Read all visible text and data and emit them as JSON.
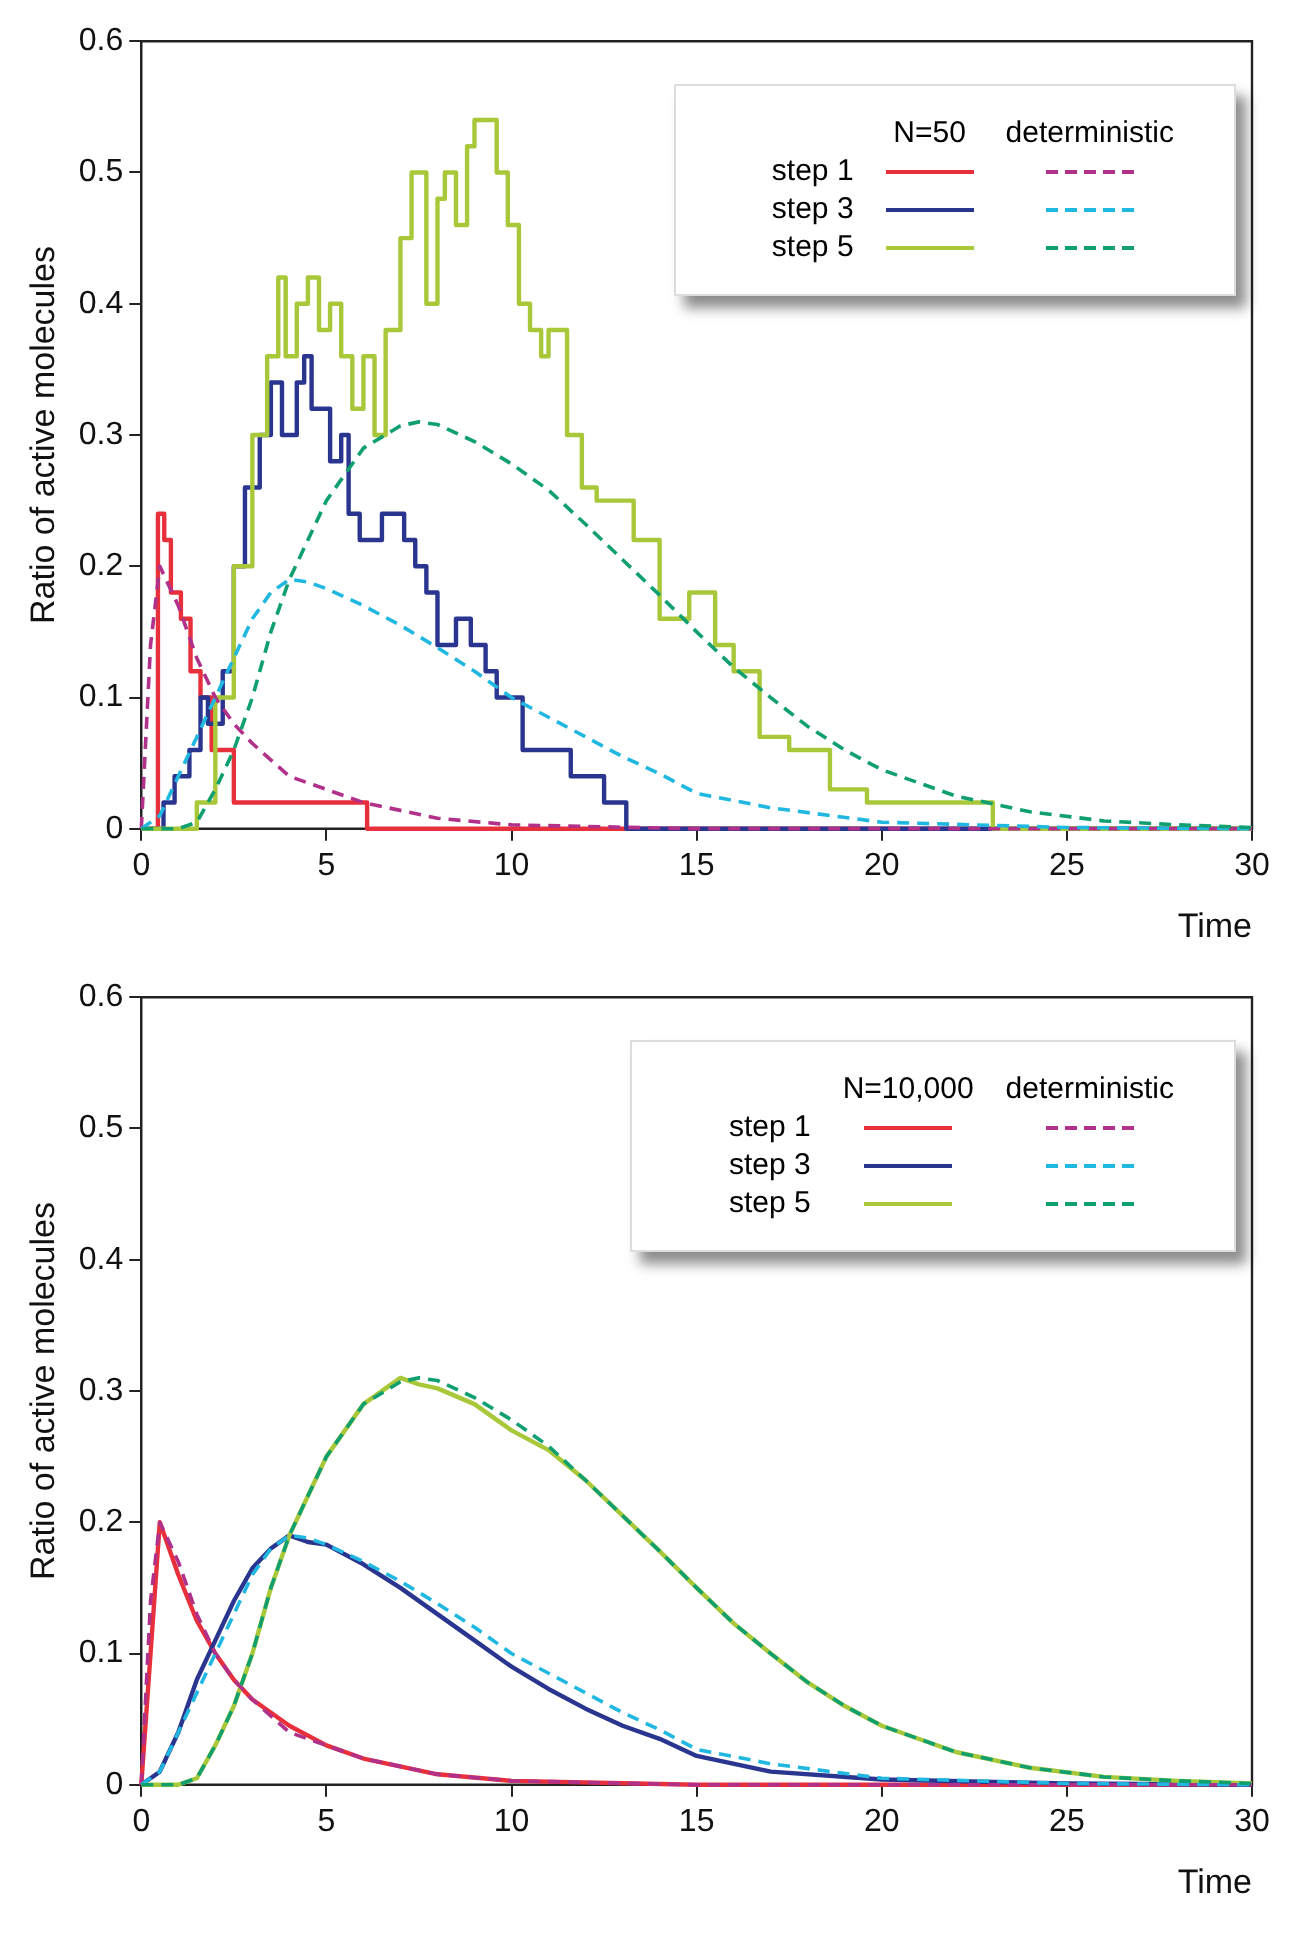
{
  "chart_data": [
    {
      "type": "line",
      "xlabel": "Time",
      "ylabel": "Ratio of active molecules",
      "xlim": [
        0,
        30
      ],
      "ylim": [
        0,
        0.6
      ],
      "xticks": [
        0,
        5,
        10,
        15,
        20,
        25,
        30
      ],
      "yticks": [
        0,
        0.1,
        0.2,
        0.3,
        0.4,
        0.5,
        0.6
      ],
      "grid": false,
      "legend": "top right",
      "legend_title": "N=50",
      "annotations": [
        "deterministic"
      ],
      "series": [
        {
          "type": "step",
          "name": "step 1",
          "color": "#e8303c",
          "line_style": "solid",
          "x": [
            0,
            0.45,
            0.62,
            0.8,
            1.07,
            1.33,
            1.6,
            1.9,
            2.5,
            6.1,
            30
          ],
          "values": [
            0,
            0.24,
            0.22,
            0.18,
            0.16,
            0.12,
            0.1,
            0.06,
            0.02,
            0,
            0
          ]
        },
        {
          "type": "step",
          "name": "step 3",
          "color": "#2a3590",
          "line_style": "solid",
          "x": [
            0,
            0.6,
            0.9,
            1.3,
            1.6,
            1.8,
            2.2,
            2.5,
            2.8,
            3.2,
            3.5,
            3.8,
            4.2,
            4.4,
            4.6,
            5.1,
            5.4,
            5.6,
            5.9,
            6.5,
            7.1,
            7.4,
            7.7,
            8.0,
            8.5,
            8.9,
            9.3,
            9.6,
            10.3,
            11.6,
            12.5,
            13.1,
            30
          ],
          "values": [
            0,
            0.02,
            0.04,
            0.06,
            0.1,
            0.08,
            0.12,
            0.2,
            0.26,
            0.3,
            0.34,
            0.3,
            0.34,
            0.36,
            0.32,
            0.28,
            0.3,
            0.24,
            0.22,
            0.24,
            0.22,
            0.2,
            0.18,
            0.14,
            0.16,
            0.14,
            0.12,
            0.1,
            0.06,
            0.04,
            0.02,
            0,
            0
          ]
        },
        {
          "type": "step",
          "name": "step 5",
          "color": "#a8c83a",
          "line_style": "solid",
          "x": [
            0,
            1.5,
            2.0,
            2.5,
            3.0,
            3.4,
            3.7,
            3.9,
            4.2,
            4.5,
            4.8,
            5.1,
            5.4,
            5.7,
            6.0,
            6.3,
            6.6,
            7.0,
            7.3,
            7.7,
            8.0,
            8.2,
            8.5,
            8.8,
            9.0,
            9.6,
            9.9,
            10.2,
            10.5,
            10.8,
            11.0,
            11.5,
            11.9,
            12.3,
            13.3,
            14.0,
            14.8,
            15.5,
            16.0,
            16.7,
            17.5,
            18.6,
            19.6,
            23.0,
            30
          ],
          "values": [
            0,
            0.02,
            0.1,
            0.2,
            0.3,
            0.36,
            0.42,
            0.36,
            0.4,
            0.42,
            0.38,
            0.4,
            0.36,
            0.32,
            0.36,
            0.3,
            0.38,
            0.45,
            0.5,
            0.4,
            0.48,
            0.5,
            0.46,
            0.52,
            0.54,
            0.5,
            0.46,
            0.4,
            0.38,
            0.36,
            0.38,
            0.3,
            0.26,
            0.25,
            0.22,
            0.16,
            0.18,
            0.14,
            0.12,
            0.07,
            0.06,
            0.03,
            0.02,
            0,
            0
          ]
        },
        {
          "type": "line",
          "color": "#b0308a",
          "line_style": "dashed",
          "x": [
            0,
            0.25,
            0.5,
            1,
            1.5,
            2,
            2.5,
            3,
            4,
            5,
            6,
            8,
            10,
            15,
            20,
            30
          ],
          "values": [
            0,
            0.14,
            0.2,
            0.17,
            0.13,
            0.1,
            0.08,
            0.065,
            0.04,
            0.03,
            0.02,
            0.008,
            0.003,
            0,
            0,
            0
          ]
        },
        {
          "type": "line",
          "color": "#20b8e0",
          "line_style": "dashed",
          "x": [
            0,
            0.5,
            1,
            1.5,
            2,
            2.5,
            3,
            3.5,
            4,
            4.5,
            5,
            6,
            7,
            8,
            9,
            10,
            11,
            12,
            13,
            14,
            15,
            17,
            20,
            25,
            30
          ],
          "values": [
            0,
            0.01,
            0.04,
            0.07,
            0.1,
            0.13,
            0.16,
            0.18,
            0.19,
            0.188,
            0.183,
            0.17,
            0.155,
            0.138,
            0.12,
            0.1,
            0.085,
            0.07,
            0.055,
            0.042,
            0.027,
            0.016,
            0.005,
            0.001,
            0
          ]
        },
        {
          "type": "line",
          "color": "#10a070",
          "line_style": "dashed",
          "x": [
            0,
            1,
            1.5,
            2,
            2.5,
            3,
            3.5,
            4,
            4.5,
            5,
            5.5,
            6,
            7,
            7.5,
            8,
            9,
            10,
            11,
            12,
            13,
            14,
            15,
            16,
            17,
            18,
            19,
            20,
            22,
            24,
            26,
            28,
            30
          ],
          "values": [
            0,
            0,
            0.005,
            0.03,
            0.06,
            0.1,
            0.15,
            0.19,
            0.22,
            0.25,
            0.27,
            0.29,
            0.307,
            0.31,
            0.308,
            0.295,
            0.278,
            0.258,
            0.232,
            0.205,
            0.178,
            0.15,
            0.123,
            0.1,
            0.078,
            0.06,
            0.045,
            0.025,
            0.013,
            0.006,
            0.003,
            0.001
          ]
        }
      ]
    },
    {
      "type": "line",
      "xlabel": "Time",
      "ylabel": "Ratio of active molecules",
      "xlim": [
        0,
        30
      ],
      "ylim": [
        0,
        0.6
      ],
      "xticks": [
        0,
        5,
        10,
        15,
        20,
        25,
        30
      ],
      "yticks": [
        0,
        0.1,
        0.2,
        0.3,
        0.4,
        0.5,
        0.6
      ],
      "grid": false,
      "legend": "top right",
      "legend_title": "N=10,000",
      "annotations": [
        "deterministic"
      ],
      "series": [
        {
          "type": "line",
          "name": "step 1",
          "color": "#e8303c",
          "line_style": "solid",
          "x": [
            0,
            0.5,
            1,
            1.5,
            2,
            2.5,
            3,
            4,
            5,
            6,
            8,
            10,
            15,
            30
          ],
          "values": [
            0,
            0.2,
            0.16,
            0.125,
            0.1,
            0.08,
            0.065,
            0.045,
            0.03,
            0.02,
            0.008,
            0.003,
            0,
            0
          ]
        },
        {
          "type": "line",
          "name": "step 3",
          "color": "#2a3590",
          "line_style": "solid",
          "x": [
            0,
            0.5,
            1,
            1.5,
            2,
            2.5,
            3,
            3.5,
            4,
            4.5,
            5,
            6,
            7,
            8,
            9,
            10,
            11,
            12,
            13,
            14,
            15,
            17,
            20,
            25,
            30
          ],
          "values": [
            0,
            0.01,
            0.04,
            0.08,
            0.11,
            0.14,
            0.165,
            0.18,
            0.19,
            0.185,
            0.183,
            0.168,
            0.15,
            0.13,
            0.11,
            0.09,
            0.073,
            0.058,
            0.045,
            0.035,
            0.022,
            0.01,
            0.004,
            0.001,
            0
          ]
        },
        {
          "type": "line",
          "name": "step 5",
          "color": "#a8c83a",
          "line_style": "solid",
          "x": [
            0,
            1,
            1.5,
            2,
            2.5,
            3,
            3.5,
            4,
            4.5,
            5,
            5.5,
            6,
            7,
            7.5,
            8,
            9,
            10,
            11,
            12,
            13,
            14,
            15,
            16,
            17,
            18,
            19,
            20,
            22,
            24,
            26,
            28,
            30
          ],
          "values": [
            0,
            0,
            0.005,
            0.03,
            0.06,
            0.1,
            0.15,
            0.19,
            0.22,
            0.25,
            0.27,
            0.29,
            0.31,
            0.305,
            0.302,
            0.29,
            0.27,
            0.255,
            0.232,
            0.205,
            0.178,
            0.15,
            0.123,
            0.1,
            0.078,
            0.06,
            0.045,
            0.025,
            0.013,
            0.006,
            0.003,
            0.001
          ]
        },
        {
          "type": "line",
          "color": "#b0308a",
          "line_style": "dashed",
          "x": [
            0,
            0.25,
            0.5,
            1,
            1.5,
            2,
            2.5,
            3,
            4,
            5,
            6,
            8,
            10,
            15,
            20,
            30
          ],
          "values": [
            0,
            0.14,
            0.2,
            0.17,
            0.13,
            0.1,
            0.08,
            0.065,
            0.04,
            0.03,
            0.02,
            0.008,
            0.003,
            0,
            0,
            0
          ]
        },
        {
          "type": "line",
          "color": "#20b8e0",
          "line_style": "dashed",
          "x": [
            0,
            0.5,
            1,
            1.5,
            2,
            2.5,
            3,
            3.5,
            4,
            4.5,
            5,
            6,
            7,
            8,
            9,
            10,
            11,
            12,
            13,
            14,
            15,
            17,
            20,
            25,
            30
          ],
          "values": [
            0,
            0.01,
            0.04,
            0.07,
            0.1,
            0.13,
            0.16,
            0.18,
            0.19,
            0.188,
            0.183,
            0.17,
            0.155,
            0.138,
            0.12,
            0.1,
            0.085,
            0.07,
            0.055,
            0.042,
            0.027,
            0.016,
            0.005,
            0.001,
            0
          ]
        },
        {
          "type": "line",
          "color": "#10a070",
          "line_style": "dashed",
          "x": [
            0,
            1,
            1.5,
            2,
            2.5,
            3,
            3.5,
            4,
            4.5,
            5,
            5.5,
            6,
            7,
            7.5,
            8,
            9,
            10,
            11,
            12,
            13,
            14,
            15,
            16,
            17,
            18,
            19,
            20,
            22,
            24,
            26,
            28,
            30
          ],
          "values": [
            0,
            0,
            0.005,
            0.03,
            0.06,
            0.1,
            0.15,
            0.19,
            0.22,
            0.25,
            0.27,
            0.29,
            0.307,
            0.31,
            0.308,
            0.295,
            0.278,
            0.258,
            0.232,
            0.205,
            0.178,
            0.15,
            0.123,
            0.1,
            0.078,
            0.06,
            0.045,
            0.025,
            0.013,
            0.006,
            0.003,
            0.001
          ]
        }
      ]
    }
  ]
}
